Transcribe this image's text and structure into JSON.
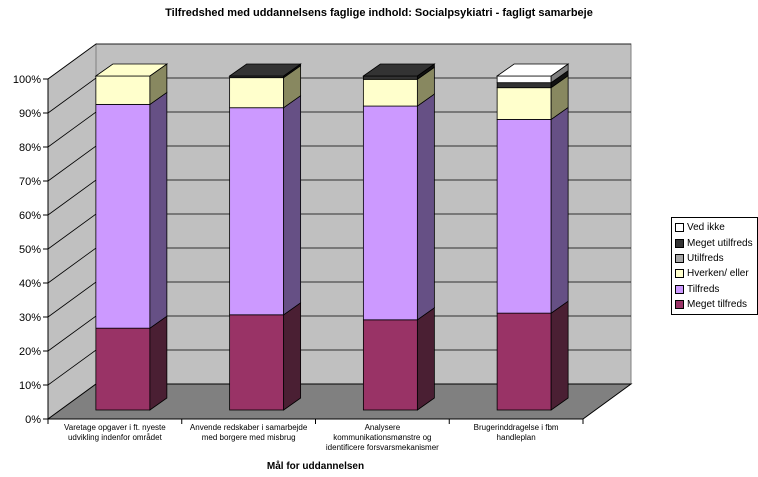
{
  "chart_data": {
    "type": "bar",
    "stacked": true,
    "three_d": true,
    "title": "Tilfredshed med uddannelsens faglige indhold: Socialpsykiatri - fagligt samarbeje",
    "xlabel": "Mål for uddannelsen",
    "ylabel": "",
    "ylim": [
      0,
      100
    ],
    "yticks": [
      "0%",
      "10%",
      "20%",
      "30%",
      "40%",
      "50%",
      "60%",
      "70%",
      "80%",
      "90%",
      "100%"
    ],
    "grid": true,
    "legend_position": "right",
    "categories": [
      [
        "Varetage opgaver i ft. nyeste",
        "udvikling indenfor området"
      ],
      [
        "Anvende redskaber i samarbejde",
        "med borgere med misbrug"
      ],
      [
        "Analysere",
        "kommunikationsmønstre og",
        "identificere forsvarsmekanismer"
      ],
      [
        "Brugerinddragelse i fbm",
        "handleplan"
      ]
    ],
    "series": [
      {
        "name": "Meget tilfreds",
        "color": "#993366",
        "side": "#4a1f33",
        "values": [
          24.5,
          28.5,
          27,
          29
        ]
      },
      {
        "name": "Tilfreds",
        "color": "#cc99ff",
        "side": "#665085",
        "values": [
          67,
          62,
          64,
          58
        ]
      },
      {
        "name": "Hverken/ eller",
        "color": "#ffffcc",
        "side": "#888860",
        "values": [
          8.5,
          9,
          8,
          9.5
        ]
      },
      {
        "name": "Utilfreds",
        "color": "#a5a5a5",
        "side": "#555555",
        "values": [
          0,
          0,
          0,
          0
        ]
      },
      {
        "name": "Meget utilfreds",
        "color": "#333333",
        "side": "#111111",
        "values": [
          0,
          0.5,
          1,
          1.5
        ]
      },
      {
        "name": "Ved ikke",
        "color": "#ffffff",
        "side": "#7f7f7f",
        "values": [
          0,
          0,
          0,
          2
        ]
      }
    ],
    "legend_order": [
      5,
      4,
      3,
      2,
      1,
      0
    ]
  }
}
